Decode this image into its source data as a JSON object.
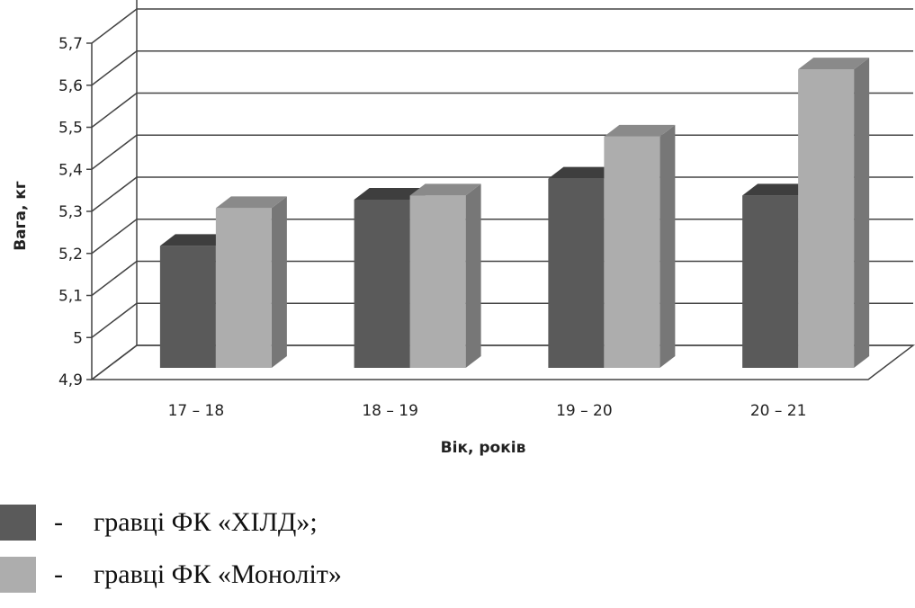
{
  "chart_data": {
    "type": "bar",
    "style": "3d-clustered-column",
    "categories": [
      "17 – 18",
      "18 – 19",
      "19 – 20",
      "20 – 21"
    ],
    "series": [
      {
        "name": "гравці ФК «ХІЛД»;",
        "values": [
          5.19,
          5.3,
          5.35,
          5.31
        ],
        "color": "#5a5a5a"
      },
      {
        "name": "гравці ФК «Моноліт»",
        "values": [
          5.28,
          5.31,
          5.45,
          5.61
        ],
        "color": "#adadad"
      }
    ],
    "yticks": [
      "4,9",
      "5",
      "5,1",
      "5,2",
      "5,3",
      "5,4",
      "5,5",
      "5,6",
      "5,7"
    ],
    "ylim": [
      4.9,
      5.7
    ],
    "xlabel": "Вік, років",
    "ylabel": "Вага, кг",
    "grid": true,
    "legend_position": "bottom-left"
  },
  "legend": {
    "dash": "-",
    "items": [
      "гравці ФК «ХІЛД»;",
      "гравці ФК «Моноліт»"
    ]
  }
}
